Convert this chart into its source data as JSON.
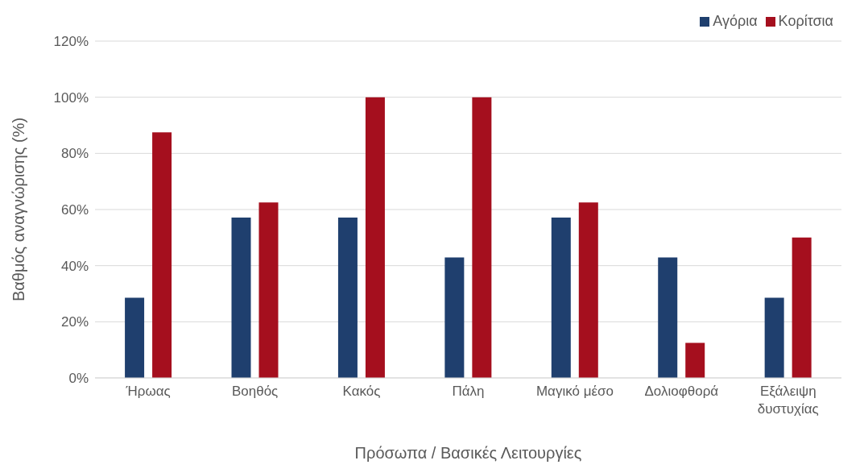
{
  "chart_data": {
    "type": "bar",
    "xlabel": "Πρόσωπα / Βασικές Λειτουργίες",
    "ylabel": "Βαθμός  αναγνώρισης (%)",
    "categories": [
      "Ήρωας",
      "Βοηθός",
      "Κακός",
      "Πάλη",
      "Μαγικό μέσο",
      "Δολιοφθορά",
      "Εξάλειψη δυστυχίας"
    ],
    "series": [
      {
        "name": "Αγόρια",
        "color": "#1f3f6e",
        "values": [
          28.6,
          57.1,
          57.1,
          42.9,
          57.1,
          42.9,
          28.6
        ]
      },
      {
        "name": "Κορίτσια",
        "color": "#a50f1e",
        "values": [
          87.5,
          62.5,
          100,
          100,
          62.5,
          12.5,
          50
        ]
      }
    ],
    "ylim": [
      0,
      120
    ],
    "yticks": [
      {
        "value": 0,
        "label": "0%"
      },
      {
        "value": 20,
        "label": "20%"
      },
      {
        "value": 40,
        "label": "40%"
      },
      {
        "value": 60,
        "label": "60%"
      },
      {
        "value": 80,
        "label": "80%"
      },
      {
        "value": 100,
        "label": "100%"
      },
      {
        "value": 120,
        "label": "120%"
      }
    ],
    "grid": "y",
    "legend": "top right"
  }
}
